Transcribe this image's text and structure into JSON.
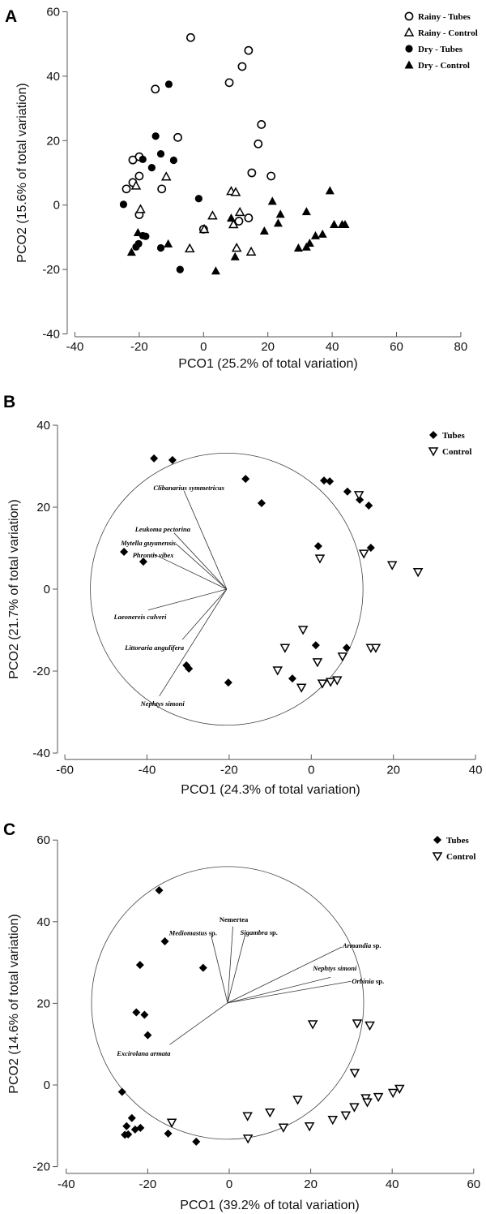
{
  "chart_data": [
    {
      "panel": "A",
      "type": "scatter",
      "xlabel": "PCO1 (25.2% of total variation)",
      "ylabel": "PCO2 (15.6% of total variation)",
      "xlim": [
        -40,
        80
      ],
      "ylim": [
        -40,
        60
      ],
      "xticks": [
        -40,
        -20,
        0,
        20,
        40,
        60,
        80
      ],
      "yticks": [
        -40,
        -20,
        0,
        20,
        40,
        60
      ],
      "legend": "top-right",
      "series": [
        {
          "name": "Rainy - Tubes",
          "marker": "circle-open",
          "points": [
            [
              -4,
              52
            ],
            [
              14,
              48
            ],
            [
              12,
              43
            ],
            [
              8,
              38
            ],
            [
              -15,
              36
            ],
            [
              -8,
              21
            ],
            [
              18,
              25
            ],
            [
              17,
              19
            ],
            [
              -22,
              14
            ],
            [
              -20,
              15
            ],
            [
              -20,
              9
            ],
            [
              -22,
              7
            ],
            [
              -13,
              5
            ],
            [
              15,
              10
            ],
            [
              21,
              9
            ],
            [
              -24,
              5
            ],
            [
              -20,
              -3
            ],
            [
              0,
              -7.5
            ],
            [
              11,
              -5
            ],
            [
              14,
              -4
            ]
          ]
        },
        {
          "name": "Rainy - Control",
          "marker": "triangle-open",
          "points": [
            [
              -11.6,
              8.8
            ],
            [
              -21,
              6
            ],
            [
              -19.6,
              -1.3
            ],
            [
              2.8,
              -3.3
            ],
            [
              -4.3,
              -13.5
            ],
            [
              0.2,
              -7.5
            ],
            [
              8.6,
              4.3
            ],
            [
              10,
              4
            ],
            [
              11.3,
              -2.2
            ],
            [
              9.3,
              -6
            ],
            [
              10.3,
              -13.3
            ],
            [
              14.8,
              -14.5
            ]
          ]
        },
        {
          "name": "Dry - Tubes",
          "marker": "circle-filled",
          "points": [
            [
              -10.8,
              37.5
            ],
            [
              -14.9,
              21.4
            ],
            [
              -13.3,
              15.9
            ],
            [
              -18.9,
              14.2
            ],
            [
              -9.3,
              13.9
            ],
            [
              -16.1,
              11.6
            ],
            [
              -24.9,
              0.2
            ],
            [
              -1.5,
              2
            ],
            [
              -18.9,
              -9.5
            ],
            [
              -18,
              -9.7
            ],
            [
              -20.2,
              -12
            ],
            [
              -21,
              -13
            ],
            [
              -13.3,
              -13.3
            ],
            [
              -7.3,
              -20
            ]
          ]
        },
        {
          "name": "Dry - Control",
          "marker": "triangle-filled",
          "points": [
            [
              -20.4,
              -8.5
            ],
            [
              -11,
              -12
            ],
            [
              -22.4,
              -14.6
            ],
            [
              3.8,
              -20.4
            ],
            [
              8.6,
              -4
            ],
            [
              9.8,
              -16
            ],
            [
              18.9,
              -8
            ],
            [
              21.4,
              1.2
            ],
            [
              23.9,
              -2.8
            ],
            [
              23.2,
              -5.6
            ],
            [
              29.5,
              -13.3
            ],
            [
              32,
              -13
            ],
            [
              33,
              -11.8
            ],
            [
              32,
              -2
            ],
            [
              34.8,
              -9.5
            ],
            [
              37,
              -9
            ],
            [
              39.3,
              4.5
            ],
            [
              40.6,
              -6
            ],
            [
              43.1,
              -6
            ],
            [
              44,
              -6
            ]
          ]
        }
      ]
    },
    {
      "panel": "B",
      "type": "scatter",
      "xlabel": "PCO1 (24.3% of total variation)",
      "ylabel": "PCO2 (21.7% of total variation)",
      "xlim": [
        -60,
        40
      ],
      "ylim": [
        -40,
        40
      ],
      "xticks": [
        -60,
        -40,
        -20,
        0,
        20,
        40
      ],
      "yticks": [
        -40,
        -20,
        0,
        20,
        40
      ],
      "legend": "top-right",
      "series": [
        {
          "name": "Tubes",
          "marker": "diamond-filled",
          "points": [
            [
              -38.3,
              31.9
            ],
            [
              -33.8,
              31.5
            ],
            [
              -16,
              26.9
            ],
            [
              3.1,
              26.5
            ],
            [
              4.5,
              26.3
            ],
            [
              8.8,
              23.8
            ],
            [
              11.8,
              21.8
            ],
            [
              14,
              20.4
            ],
            [
              -12.1,
              21
            ],
            [
              1.7,
              10.5
            ],
            [
              14.5,
              10.1
            ],
            [
              -45.6,
              9.1
            ],
            [
              -40.9,
              6.7
            ],
            [
              -30.4,
              -18.6
            ],
            [
              -29.8,
              -19.4
            ],
            [
              -20.2,
              -22.8
            ],
            [
              1.1,
              -13.7
            ],
            [
              8.6,
              -14.3
            ],
            [
              -4.6,
              -21.8
            ]
          ]
        },
        {
          "name": "Control",
          "marker": "triangle-down-open",
          "points": [
            [
              11.6,
              23
            ],
            [
              2.1,
              7.5
            ],
            [
              12.8,
              8.7
            ],
            [
              19.7,
              5.9
            ],
            [
              26,
              4.2
            ],
            [
              -2,
              -9.9
            ],
            [
              -6.4,
              -14.3
            ],
            [
              14.5,
              -14.3
            ],
            [
              15.7,
              -14.3
            ],
            [
              7.6,
              -16.4
            ],
            [
              1.5,
              -17.8
            ],
            [
              -8.2,
              -19.8
            ],
            [
              -2.4,
              -24
            ],
            [
              2.7,
              -23
            ],
            [
              4.7,
              -22.6
            ],
            [
              6.3,
              -22.2
            ]
          ]
        }
      ],
      "circle": {
        "center": [
          -20.6,
          0
        ],
        "radius": 33.2
      },
      "vectors": [
        {
          "label": "Clibanarius symmetricus",
          "suffix": "",
          "italic": true,
          "end": [
            -31,
            24
          ]
        },
        {
          "label": "Leukoma pectorina",
          "suffix": "",
          "italic": true,
          "end": [
            -33.4,
            13.7
          ]
        },
        {
          "label": "Mytella guyanensis",
          "suffix": "",
          "italic": true,
          "end": [
            -33,
            11.1
          ]
        },
        {
          "label": "Phrontis vibex",
          "suffix": "",
          "italic": true,
          "end": [
            -38.3,
            8.5
          ]
        },
        {
          "label": "Laeonereis culveri",
          "suffix": "",
          "italic": true,
          "end": [
            -39.7,
            -5.1
          ]
        },
        {
          "label": "Littoraria angulifera",
          "suffix": "",
          "italic": true,
          "end": [
            -31.4,
            -12.3
          ]
        },
        {
          "label": "Nephtys simoni",
          "suffix": "",
          "italic": true,
          "end": [
            -37,
            -26.1
          ]
        }
      ]
    },
    {
      "panel": "C",
      "type": "scatter",
      "xlabel": "PCO1 (39.2% of total variation)",
      "ylabel": "PCO2 (14.6% of total variation)",
      "xlim": [
        -40,
        60
      ],
      "ylim": [
        -20,
        60
      ],
      "xticks": [
        -40,
        -20,
        0,
        20,
        40,
        60
      ],
      "yticks": [
        -20,
        0,
        20,
        40,
        60
      ],
      "legend": "top-right",
      "series": [
        {
          "name": "Tubes",
          "marker": "diamond-filled",
          "points": [
            [
              -17.2,
              47.7
            ],
            [
              -15.8,
              35.2
            ],
            [
              -21.9,
              29.4
            ],
            [
              -6.4,
              28.7
            ],
            [
              -22.8,
              17.8
            ],
            [
              -20.8,
              17.2
            ],
            [
              -20,
              12.2
            ],
            [
              -26.3,
              -1.7
            ],
            [
              -23.9,
              -8.1
            ],
            [
              -25.2,
              -10.1
            ],
            [
              -23.1,
              -10.9
            ],
            [
              -21.8,
              -10.5
            ],
            [
              -25.6,
              -12.2
            ],
            [
              -24.8,
              -12.1
            ],
            [
              -15,
              -11.9
            ],
            [
              -8.1,
              -13.9
            ]
          ]
        },
        {
          "name": "Control",
          "marker": "triangle-down-open",
          "points": [
            [
              20.5,
              14.9
            ],
            [
              31.4,
              15.1
            ],
            [
              34.5,
              14.6
            ],
            [
              30.8,
              3
            ],
            [
              41.8,
              -0.9
            ],
            [
              40.2,
              -1.9
            ],
            [
              36.6,
              -2.9
            ],
            [
              33.5,
              -3.2
            ],
            [
              33.9,
              -4.2
            ],
            [
              30.7,
              -5.4
            ],
            [
              28.6,
              -7.4
            ],
            [
              25.4,
              -8.5
            ],
            [
              19.7,
              -10.1
            ],
            [
              13.3,
              -10.4
            ],
            [
              16.8,
              -3.6
            ],
            [
              10,
              -6.7
            ],
            [
              4.5,
              -7.6
            ],
            [
              4.6,
              -13.1
            ],
            [
              -14.1,
              -9.2
            ]
          ]
        }
      ],
      "circle": {
        "center": [
          -0.4,
          20.1
        ],
        "radius": 33.4
      },
      "vectors": [
        {
          "label": "Mediomastus",
          "suffix": " sp.",
          "italic": true,
          "end": [
            -4.4,
            36.5
          ]
        },
        {
          "label": "Nemertea",
          "suffix": "",
          "italic": false,
          "end": [
            0.9,
            38.8
          ]
        },
        {
          "label": "Sigambra",
          "suffix": " sp.",
          "italic": true,
          "end": [
            3.9,
            36.8
          ]
        },
        {
          "label": "Armandia",
          "suffix": " sp.",
          "italic": true,
          "end": [
            27.6,
            33.8
          ]
        },
        {
          "label": "Nephtys simoni",
          "suffix": "",
          "italic": true,
          "end": [
            24.9,
            26.4
          ]
        },
        {
          "label": "Orbinia",
          "suffix": " sp.",
          "italic": true,
          "end": [
            29.9,
            25.4
          ]
        },
        {
          "label": "Excirolana armata",
          "suffix": "",
          "italic": true,
          "end": [
            -14.6,
            9.9
          ]
        }
      ]
    }
  ]
}
